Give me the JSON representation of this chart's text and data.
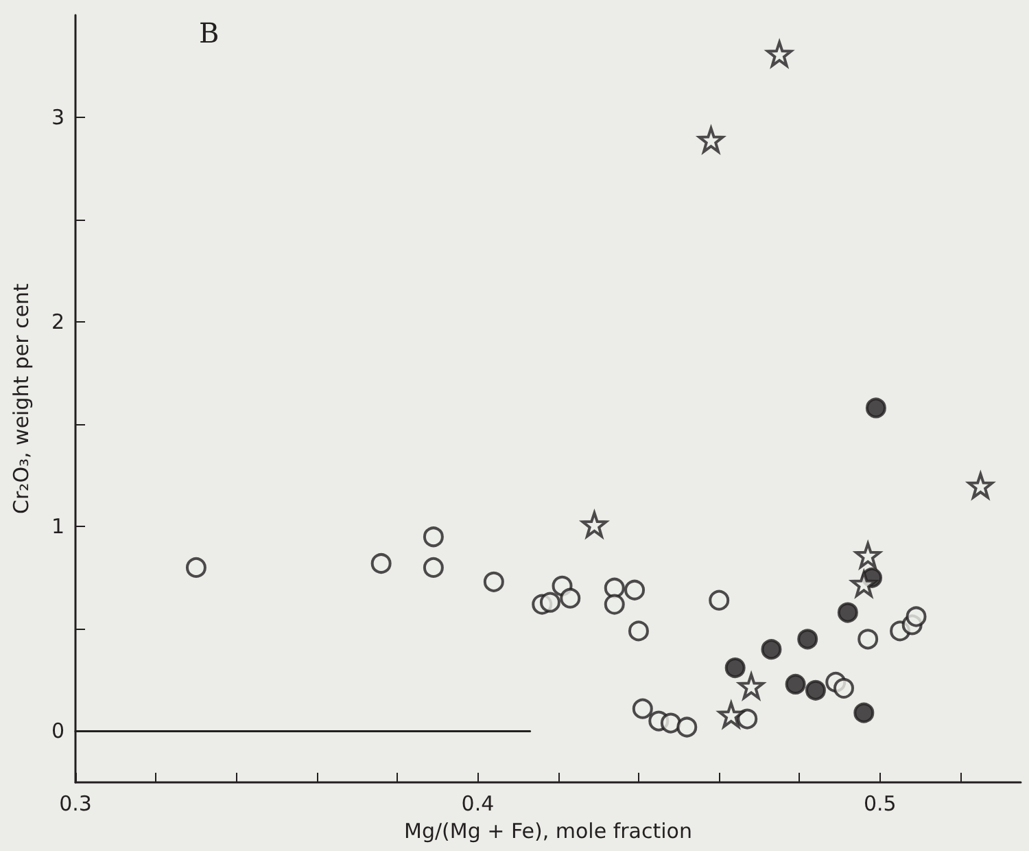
{
  "chart_data": {
    "type": "scatter",
    "xlabel": "Mg/(Mg + Fe), mole fraction",
    "ylabel": "Cr₂O₃, weight per cent",
    "annotations": [
      "B"
    ],
    "xlim": [
      0.3,
      0.535
    ],
    "ylim": [
      -0.25,
      3.5
    ],
    "xticks": [
      0.3,
      {
        "value": 0.32,
        "label": null
      },
      {
        "value": 0.34,
        "label": null
      },
      {
        "value": 0.36,
        "label": null
      },
      {
        "value": 0.38,
        "label": null
      },
      0.4,
      {
        "value": 0.42,
        "label": null
      },
      {
        "value": 0.44,
        "label": null
      },
      {
        "value": 0.46,
        "label": null
      },
      {
        "value": 0.48,
        "label": null
      },
      0.5,
      {
        "value": 0.52,
        "label": null
      }
    ],
    "yticks": [
      0,
      {
        "value": 0.5,
        "label": null
      },
      1,
      {
        "value": 1.5,
        "label": null
      },
      2,
      {
        "value": 2.5,
        "label": null
      },
      3
    ],
    "series": [
      {
        "marker": "circle",
        "color": "#231f20",
        "x": [
          0.33,
          0.376,
          0.389,
          0.389,
          0.404,
          0.416,
          0.418,
          0.421,
          0.423,
          0.434,
          0.439,
          0.434,
          0.44,
          0.46,
          0.441,
          0.445,
          0.448,
          0.452,
          0.467,
          0.489,
          0.491,
          0.497,
          0.505,
          0.508,
          0.509
        ],
        "values": [
          0.8,
          0.82,
          0.95,
          0.8,
          0.73,
          0.62,
          0.63,
          0.71,
          0.65,
          0.7,
          0.69,
          0.62,
          0.49,
          0.64,
          0.11,
          0.05,
          0.04,
          0.02,
          0.06,
          0.24,
          0.21,
          0.45,
          0.49,
          0.52,
          0.56
        ]
      },
      {
        "marker": "circle",
        "color": "#231f20",
        "colors": [
          "#231f20",
          "#231f20",
          "#231f20",
          "#231f20",
          "#231f20",
          "#231f20",
          "#231f20",
          "#231f20",
          "#231f20"
        ],
        "x": [
          0.499,
          0.498,
          0.492,
          0.482,
          0.473,
          0.464,
          0.479,
          0.484,
          0.496
        ],
        "values": [
          1.58,
          0.75,
          0.58,
          0.45,
          0.4,
          0.31,
          0.23,
          0.2,
          0.09
        ]
      },
      {
        "marker": "star",
        "color": "#231f20",
        "x": [
          0.475,
          0.458,
          0.429,
          0.525,
          0.497,
          0.496,
          0.468,
          0.463
        ],
        "values": [
          3.31,
          2.89,
          1.01,
          1.2,
          0.86,
          0.72,
          0.22,
          0.08
        ]
      },
      {
        "type": "line",
        "marker": "none",
        "color": "#231f20",
        "x": [
          0.3,
          0.413
        ],
        "values": [
          0,
          0
        ]
      }
    ]
  }
}
